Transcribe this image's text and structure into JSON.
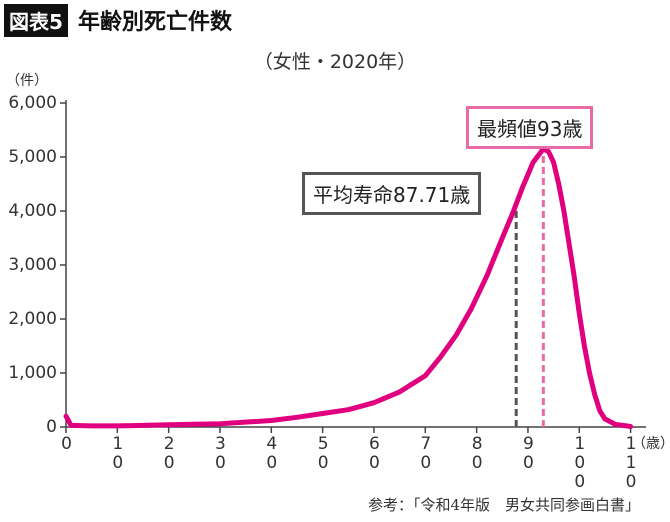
{
  "chart_data": {
    "type": "line",
    "title_tag": "図表5",
    "title": "年齢別死亡件数",
    "subtitle": "（女性・2020年）",
    "y_label": "（件）",
    "x_label": "（歳）",
    "source": "参考：「令和4年版　男女共同参画白書」",
    "x": [
      0,
      1,
      5,
      10,
      20,
      30,
      40,
      45,
      50,
      55,
      60,
      65,
      70,
      73,
      76,
      79,
      82,
      85,
      87,
      89,
      91,
      93,
      94,
      95,
      96,
      97,
      98,
      99,
      100,
      101,
      102,
      103,
      104,
      105,
      107,
      110
    ],
    "series": [
      {
        "name": "女性",
        "color": "#e0007f",
        "values": [
          200,
          30,
          20,
          20,
          40,
          60,
          120,
          180,
          250,
          320,
          450,
          650,
          950,
          1300,
          1700,
          2200,
          2800,
          3500,
          3950,
          4450,
          4900,
          5150,
          5100,
          4900,
          4500,
          4000,
          3400,
          2800,
          2100,
          1500,
          1000,
          600,
          300,
          150,
          50,
          10
        ]
      }
    ],
    "xlim": [
      0,
      113
    ],
    "ylim": [
      0,
      6000
    ],
    "xticks": [
      0,
      10,
      20,
      30,
      40,
      50,
      60,
      70,
      80,
      90,
      100,
      110
    ],
    "yticks": [
      0,
      {
        "value": 1000,
        "label": "1,000"
      },
      {
        "value": 2000,
        "label": "2,000"
      },
      {
        "value": 3000,
        "label": "3,000"
      },
      {
        "value": 4000,
        "label": "4,000"
      },
      {
        "value": 5000,
        "label": "5,000"
      },
      {
        "value": 6000,
        "label": "6,000"
      }
    ],
    "annotations": [
      {
        "label": "平均寿命87.71歳",
        "x": 87.71,
        "color": "#555555"
      },
      {
        "label": "最頻値93歳",
        "x": 93,
        "color": "#e86aa6"
      }
    ]
  }
}
